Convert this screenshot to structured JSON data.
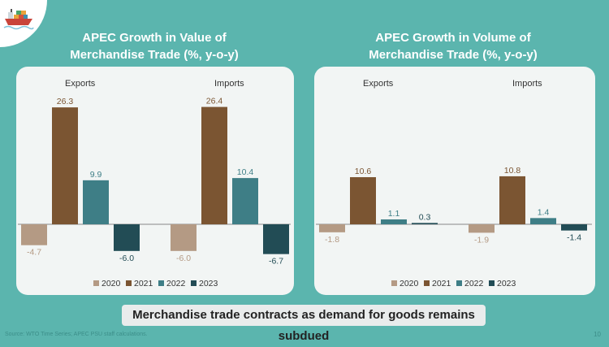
{
  "colors": {
    "2020": "#b49a84",
    "2021": "#7b5532",
    "2022": "#3e7e86",
    "2023": "#224c55"
  },
  "chart_data": [
    {
      "type": "bar",
      "title": "APEC Growth in Value of Merchandise Trade (%, y-o-y)",
      "title_lines": [
        "APEC Growth in Value of",
        "Merchandise Trade (%, y-o-y)"
      ],
      "groups": [
        "Exports",
        "Imports"
      ],
      "series": [
        {
          "name": "2020",
          "values": [
            -4.7,
            -6.0
          ]
        },
        {
          "name": "2021",
          "values": [
            26.3,
            26.4
          ]
        },
        {
          "name": "2022",
          "values": [
            9.9,
            10.4
          ]
        },
        {
          "name": "2023",
          "values": [
            -6.0,
            -6.7
          ]
        }
      ],
      "value_labels": [
        [
          "-4.7",
          "-6.0"
        ],
        [
          "26.3",
          "26.4"
        ],
        [
          "9.9",
          "10.4"
        ],
        [
          "-6.0",
          "-6.7"
        ]
      ],
      "ylim": [
        -7.5,
        28
      ],
      "legend": "bottom"
    },
    {
      "type": "bar",
      "title": "APEC Growth in Volume of Merchandise Trade (%, y-o-y)",
      "title_lines": [
        "APEC Growth in Volume of",
        "Merchandise Trade (%, y-o-y)"
      ],
      "groups": [
        "Exports",
        "Imports"
      ],
      "series": [
        {
          "name": "2020",
          "values": [
            -1.8,
            -1.9
          ]
        },
        {
          "name": "2021",
          "values": [
            10.6,
            10.8
          ]
        },
        {
          "name": "2022",
          "values": [
            1.1,
            1.4
          ]
        },
        {
          "name": "2023",
          "values": [
            0.3,
            -1.4
          ]
        }
      ],
      "value_labels": [
        [
          "-1.8",
          "-1.9"
        ],
        [
          "10.6",
          "10.8"
        ],
        [
          "1.1",
          "1.4"
        ],
        [
          "0.3",
          "-1.4"
        ]
      ],
      "ylim": [
        -3.5,
        28
      ],
      "legend": "bottom"
    }
  ],
  "banner": "Merchandise trade contracts as demand for goods remains subdued",
  "source": "Source: WTO Time Series; APEC PSU staff calculations.",
  "page_number": "10"
}
